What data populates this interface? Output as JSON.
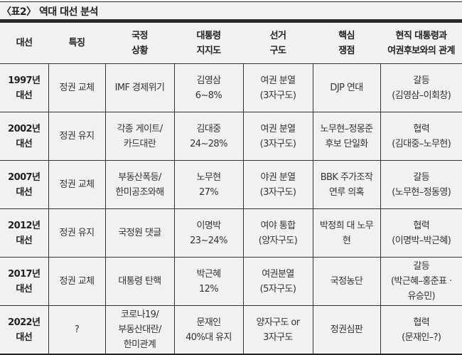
{
  "title": "〈표2〉 역대 대선 분석",
  "headers": [
    [
      "대선"
    ],
    [
      "특징"
    ],
    [
      "국정",
      "상황"
    ],
    [
      "대통령",
      "지지도"
    ],
    [
      "선거",
      "구도"
    ],
    [
      "핵심",
      "쟁점"
    ],
    [
      "현직 대통령과",
      "여권후보와의 관계"
    ]
  ],
  "rows": [
    [
      [
        "1997년",
        "대선"
      ],
      [
        "정권 교체"
      ],
      [
        "IMF 경제위기"
      ],
      [
        "김영삼",
        "6~8%"
      ],
      [
        "여권 분열",
        "(3자구도)"
      ],
      [
        "DJP 연대"
      ],
      [
        "갈등",
        "(김영삼–이회창)"
      ]
    ],
    [
      [
        "2002년",
        "대선"
      ],
      [
        "정권 유지"
      ],
      [
        "각종 게이트/",
        "카드대란"
      ],
      [
        "김대중",
        "24~28%"
      ],
      [
        "여권 분열",
        "(3자구도)"
      ],
      [
        "노무현–정몽준",
        "후보 단일화"
      ],
      [
        "협력",
        "(김대중–노무현)"
      ]
    ],
    [
      [
        "2007년",
        "대선"
      ],
      [
        "정권 교체"
      ],
      [
        "부동산폭등/",
        "한미공조와해"
      ],
      [
        "노무현",
        "27%"
      ],
      [
        "야권 분열",
        "(3자구도)"
      ],
      [
        "BBK 주가조작",
        "연루 의혹"
      ],
      [
        "갈등",
        "(노무현–정동영)"
      ]
    ],
    [
      [
        "2012년",
        "대선"
      ],
      [
        "정권 유지"
      ],
      [
        "국정원 댓글"
      ],
      [
        "이명박",
        "23~24%"
      ],
      [
        "여야 통합",
        "(양자구도)"
      ],
      [
        "박정희 대 노무",
        "현"
      ],
      [
        "협력",
        "(이명박–박근혜)"
      ]
    ],
    [
      [
        "2017년",
        "대선"
      ],
      [
        "정권 교체"
      ],
      [
        "대통령 탄핵"
      ],
      [
        "박근혜",
        "12%"
      ],
      [
        "여권분열",
        "(5자구도)"
      ],
      [
        "국정농단"
      ],
      [
        "갈등",
        "(박근혜–홍준표 ·",
        "유승민)"
      ]
    ],
    [
      [
        "2022년",
        "대선"
      ],
      [
        "?"
      ],
      [
        "코로나19/",
        "부동산대란/",
        "한미관계"
      ],
      [
        "문재인",
        "40%대 유지"
      ],
      [
        "양자구도 or",
        "3자구도"
      ],
      [
        "정권심판"
      ],
      [
        "협력",
        "(문재인–?)"
      ]
    ]
  ]
}
